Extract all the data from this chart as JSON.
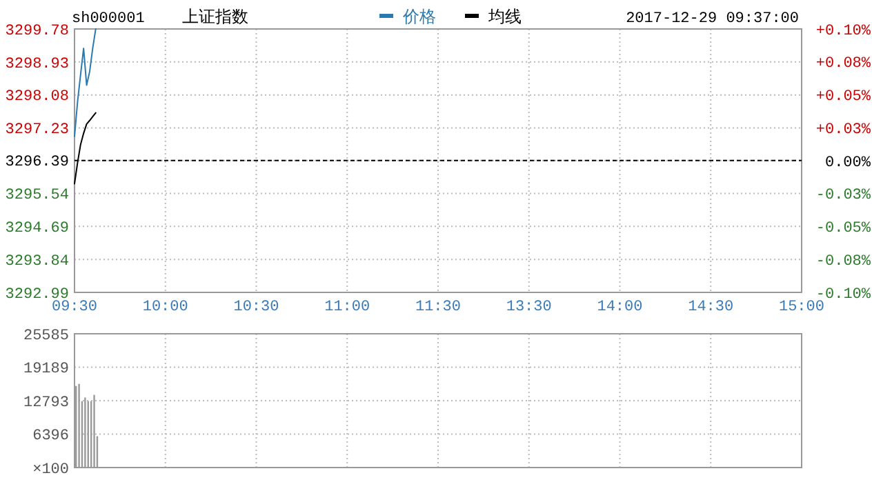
{
  "chart_data": [
    {
      "type": "line",
      "title": "上证指数",
      "subtitle": "sh000001",
      "annotations": [
        "2017-12-29 09:37:00"
      ],
      "legend": "top",
      "grid": true,
      "line_style": "solid",
      "categories": [
        "09:30",
        null,
        null,
        null,
        null,
        null,
        null,
        null,
        null,
        null,
        null,
        null,
        null,
        null,
        null,
        null,
        null,
        null,
        null,
        null,
        null,
        null,
        null,
        null,
        null,
        null,
        null,
        null,
        null,
        null,
        "10:00",
        null,
        null,
        null,
        null,
        null,
        null,
        null,
        null,
        null,
        null,
        null,
        null,
        null,
        null,
        null,
        null,
        null,
        null,
        null,
        null,
        null,
        null,
        null,
        null,
        null,
        null,
        null,
        null,
        null,
        "10:30",
        null,
        null,
        null,
        null,
        null,
        null,
        null,
        null,
        null,
        null,
        null,
        null,
        null,
        null,
        null,
        null,
        null,
        null,
        null,
        null,
        null,
        null,
        null,
        null,
        null,
        null,
        null,
        null,
        null,
        "11:00",
        null,
        null,
        null,
        null,
        null,
        null,
        null,
        null,
        null,
        null,
        null,
        null,
        null,
        null,
        null,
        null,
        null,
        null,
        null,
        null,
        null,
        null,
        null,
        null,
        null,
        null,
        null,
        null,
        null,
        "11:30",
        null,
        null,
        null,
        null,
        null,
        null,
        null,
        null,
        null,
        null,
        null,
        null,
        null,
        null,
        null,
        null,
        null,
        null,
        null,
        null,
        null,
        null,
        null,
        null,
        null,
        null,
        null,
        null,
        null,
        "13:30",
        null,
        null,
        null,
        null,
        null,
        null,
        null,
        null,
        null,
        null,
        null,
        null,
        null,
        null,
        null,
        null,
        null,
        null,
        null,
        null,
        null,
        null,
        null,
        null,
        null,
        null,
        null,
        null,
        null,
        "14:00",
        null,
        null,
        null,
        null,
        null,
        null,
        null,
        null,
        null,
        null,
        null,
        null,
        null,
        null,
        null,
        null,
        null,
        null,
        null,
        null,
        null,
        null,
        null,
        null,
        null,
        null,
        null,
        null,
        null,
        "14:30",
        null,
        null,
        null,
        null,
        null,
        null,
        null,
        null,
        null,
        null,
        null,
        null,
        null,
        null,
        null,
        null,
        null,
        null,
        null,
        null,
        null,
        null,
        null,
        null,
        null,
        null,
        null,
        null,
        null,
        "15:00"
      ],
      "ylim": [
        3292.99,
        3299.78
      ],
      "yticks": [
        3292.99,
        3293.84,
        3294.69,
        3295.54,
        3296.39,
        3297.23,
        3298.08,
        3298.93,
        3299.78
      ],
      "y2lim": [
        -0.1,
        0.1
      ],
      "y2ticks": [
        {
          "value": -0.1,
          "label": "-0.10%"
        },
        {
          "value": -0.075,
          "label": "-0.08%"
        },
        {
          "value": -0.05,
          "label": "-0.05%"
        },
        {
          "value": -0.025,
          "label": "-0.03%"
        },
        {
          "value": 0,
          "label": "0.00%"
        },
        {
          "value": 0.025,
          "label": "+0.03%"
        },
        {
          "value": 0.05,
          "label": "+0.05%"
        },
        {
          "value": 0.075,
          "label": "+0.08%"
        },
        {
          "value": 0.1,
          "label": "+0.10%"
        }
      ],
      "ref_lines": [
        {
          "axis": "y",
          "value": 3296.39,
          "color": "#000000",
          "line_style": "dashed"
        }
      ],
      "series": [
        {
          "name": "价格",
          "color": "#2a7ab0",
          "values": [
            3297.01,
            3297.9,
            3298.6,
            3299.28,
            3298.33,
            3298.68,
            3299.28,
            3299.78,
            null,
            null,
            null,
            null,
            null,
            null,
            null,
            null,
            null,
            null,
            null,
            null,
            null,
            null,
            null,
            null,
            null,
            null,
            null,
            null,
            null,
            null,
            null,
            null,
            null,
            null,
            null,
            null,
            null,
            null,
            null,
            null,
            null,
            null,
            null,
            null,
            null,
            null,
            null,
            null,
            null,
            null,
            null,
            null,
            null,
            null,
            null,
            null,
            null,
            null,
            null,
            null,
            null,
            null,
            null,
            null,
            null,
            null,
            null,
            null,
            null,
            null,
            null,
            null,
            null,
            null,
            null,
            null,
            null,
            null,
            null,
            null,
            null,
            null,
            null,
            null,
            null,
            null,
            null,
            null,
            null,
            null,
            null,
            null,
            null,
            null,
            null,
            null,
            null,
            null,
            null,
            null,
            null,
            null,
            null,
            null,
            null,
            null,
            null,
            null,
            null,
            null,
            null,
            null,
            null,
            null,
            null,
            null,
            null,
            null,
            null,
            null,
            null,
            null,
            null,
            null,
            null,
            null,
            null,
            null,
            null,
            null,
            null,
            null,
            null,
            null,
            null,
            null,
            null,
            null,
            null,
            null,
            null,
            null,
            null,
            null,
            null,
            null,
            null,
            null,
            null,
            null,
            null,
            null,
            null,
            null,
            null,
            null,
            null,
            null,
            null,
            null,
            null,
            null,
            null,
            null,
            null,
            null,
            null,
            null,
            null,
            null,
            null,
            null,
            null,
            null,
            null,
            null,
            null,
            null,
            null,
            null,
            null,
            null,
            null,
            null,
            null,
            null,
            null,
            null,
            null,
            null,
            null,
            null,
            null,
            null,
            null,
            null,
            null,
            null,
            null,
            null,
            null,
            null,
            null,
            null,
            null,
            null,
            null,
            null,
            null,
            null,
            null,
            null,
            null,
            null,
            null,
            null,
            null,
            null,
            null,
            null,
            null,
            null,
            null,
            null,
            null,
            null,
            null,
            null,
            null,
            null,
            null,
            null,
            null,
            null,
            null,
            null,
            null,
            null,
            null,
            null,
            null
          ]
        },
        {
          "name": "均线",
          "color": "#000000",
          "values": [
            3295.79,
            3296.33,
            3296.8,
            3297.09,
            3297.33,
            3297.42,
            3297.52,
            3297.62,
            null,
            null,
            null,
            null,
            null,
            null,
            null,
            null,
            null,
            null,
            null,
            null,
            null,
            null,
            null,
            null,
            null,
            null,
            null,
            null,
            null,
            null,
            null,
            null,
            null,
            null,
            null,
            null,
            null,
            null,
            null,
            null,
            null,
            null,
            null,
            null,
            null,
            null,
            null,
            null,
            null,
            null,
            null,
            null,
            null,
            null,
            null,
            null,
            null,
            null,
            null,
            null,
            null,
            null,
            null,
            null,
            null,
            null,
            null,
            null,
            null,
            null,
            null,
            null,
            null,
            null,
            null,
            null,
            null,
            null,
            null,
            null,
            null,
            null,
            null,
            null,
            null,
            null,
            null,
            null,
            null,
            null,
            null,
            null,
            null,
            null,
            null,
            null,
            null,
            null,
            null,
            null,
            null,
            null,
            null,
            null,
            null,
            null,
            null,
            null,
            null,
            null,
            null,
            null,
            null,
            null,
            null,
            null,
            null,
            null,
            null,
            null,
            null,
            null,
            null,
            null,
            null,
            null,
            null,
            null,
            null,
            null,
            null,
            null,
            null,
            null,
            null,
            null,
            null,
            null,
            null,
            null,
            null,
            null,
            null,
            null,
            null,
            null,
            null,
            null,
            null,
            null,
            null,
            null,
            null,
            null,
            null,
            null,
            null,
            null,
            null,
            null,
            null,
            null,
            null,
            null,
            null,
            null,
            null,
            null,
            null,
            null,
            null,
            null,
            null,
            null,
            null,
            null,
            null,
            null,
            null,
            null,
            null,
            null,
            null,
            null,
            null,
            null,
            null,
            null,
            null,
            null,
            null,
            null,
            null,
            null,
            null,
            null,
            null,
            null,
            null,
            null,
            null,
            null,
            null,
            null,
            null,
            null,
            null,
            null,
            null,
            null,
            null,
            null,
            null,
            null,
            null,
            null,
            null,
            null,
            null,
            null,
            null,
            null,
            null,
            null,
            null,
            null,
            null,
            null,
            null,
            null,
            null,
            null,
            null,
            null,
            null,
            null,
            null,
            null,
            null,
            null,
            null
          ]
        }
      ]
    },
    {
      "type": "bar",
      "grid": true,
      "tick_labels": "y",
      "ylabel": "×100",
      "categories": [
        null,
        null,
        null,
        null,
        null,
        null,
        null,
        null,
        null,
        null,
        null,
        null,
        null,
        null,
        null,
        null,
        null,
        null,
        null,
        null,
        null,
        null,
        null,
        null,
        null,
        null,
        null,
        null,
        null,
        null,
        null,
        null,
        null,
        null,
        null,
        null,
        null,
        null,
        null,
        null,
        null,
        null,
        null,
        null,
        null,
        null,
        null,
        null,
        null,
        null,
        null,
        null,
        null,
        null,
        null,
        null,
        null,
        null,
        null,
        null,
        null,
        null,
        null,
        null,
        null,
        null,
        null,
        null,
        null,
        null,
        null,
        null,
        null,
        null,
        null,
        null,
        null,
        null,
        null,
        null,
        null,
        null,
        null,
        null,
        null,
        null,
        null,
        null,
        null,
        null,
        null,
        null,
        null,
        null,
        null,
        null,
        null,
        null,
        null,
        null,
        null,
        null,
        null,
        null,
        null,
        null,
        null,
        null,
        null,
        null,
        null,
        null,
        null,
        null,
        null,
        null,
        null,
        null,
        null,
        null,
        null,
        null,
        null,
        null,
        null,
        null,
        null,
        null,
        null,
        null,
        null,
        null,
        null,
        null,
        null,
        null,
        null,
        null,
        null,
        null,
        null,
        null,
        null,
        null,
        null,
        null,
        null,
        null,
        null,
        null,
        null,
        null,
        null,
        null,
        null,
        null,
        null,
        null,
        null,
        null,
        null,
        null,
        null,
        null,
        null,
        null,
        null,
        null,
        null,
        null,
        null,
        null,
        null,
        null,
        null,
        null,
        null,
        null,
        null,
        null,
        null,
        null,
        null,
        null,
        null,
        null,
        null,
        null,
        null,
        null,
        null,
        null,
        null,
        null,
        null,
        null,
        null,
        null,
        null,
        null,
        null,
        null,
        null,
        null,
        null,
        null,
        null,
        null,
        null,
        null,
        null,
        null,
        null,
        null,
        null,
        null,
        null,
        null,
        null,
        null,
        null,
        null,
        null,
        null,
        null,
        null,
        null,
        null,
        null,
        null,
        null,
        null,
        null,
        null,
        null,
        null,
        null,
        null,
        null,
        null,
        null
      ],
      "ylim": [
        0,
        25585
      ],
      "yticks": [
        {
          "value": 0,
          "label": null
        },
        6396,
        12793,
        19189,
        25585
      ],
      "series": [
        {
          "color": "#999999",
          "values": [
            15600,
            16000,
            12700,
            13400,
            12700,
            12700,
            13900,
            6000,
            null,
            null,
            null,
            null,
            null,
            null,
            null,
            null,
            null,
            null,
            null,
            null,
            null,
            null,
            null,
            null,
            null,
            null,
            null,
            null,
            null,
            null,
            null,
            null,
            null,
            null,
            null,
            null,
            null,
            null,
            null,
            null,
            null,
            null,
            null,
            null,
            null,
            null,
            null,
            null,
            null,
            null,
            null,
            null,
            null,
            null,
            null,
            null,
            null,
            null,
            null,
            null,
            null,
            null,
            null,
            null,
            null,
            null,
            null,
            null,
            null,
            null,
            null,
            null,
            null,
            null,
            null,
            null,
            null,
            null,
            null,
            null,
            null,
            null,
            null,
            null,
            null,
            null,
            null,
            null,
            null,
            null,
            null,
            null,
            null,
            null,
            null,
            null,
            null,
            null,
            null,
            null,
            null,
            null,
            null,
            null,
            null,
            null,
            null,
            null,
            null,
            null,
            null,
            null,
            null,
            null,
            null,
            null,
            null,
            null,
            null,
            null,
            null,
            null,
            null,
            null,
            null,
            null,
            null,
            null,
            null,
            null,
            null,
            null,
            null,
            null,
            null,
            null,
            null,
            null,
            null,
            null,
            null,
            null,
            null,
            null,
            null,
            null,
            null,
            null,
            null,
            null,
            null,
            null,
            null,
            null,
            null,
            null,
            null,
            null,
            null,
            null,
            null,
            null,
            null,
            null,
            null,
            null,
            null,
            null,
            null,
            null,
            null,
            null,
            null,
            null,
            null,
            null,
            null,
            null,
            null,
            null,
            null,
            null,
            null,
            null,
            null,
            null,
            null,
            null,
            null,
            null,
            null,
            null,
            null,
            null,
            null,
            null,
            null,
            null,
            null,
            null,
            null,
            null,
            null,
            null,
            null,
            null,
            null,
            null,
            null,
            null,
            null,
            null,
            null,
            null,
            null,
            null,
            null,
            null,
            null,
            null,
            null,
            null,
            null,
            null,
            null,
            null,
            null,
            null,
            null,
            null,
            null,
            null,
            null,
            null,
            null,
            null,
            null,
            null,
            null,
            null,
            null
          ]
        }
      ]
    }
  ]
}
